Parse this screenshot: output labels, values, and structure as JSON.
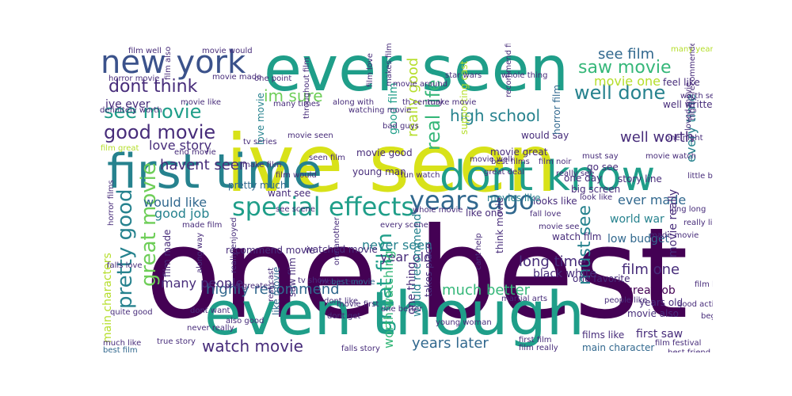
{
  "palette": {
    "dark_purple": "#440154",
    "purple": "#472c7a",
    "blue": "#3b528b",
    "steel": "#31688e",
    "teal_blue": "#26828e",
    "teal": "#1f9e89",
    "green": "#35b779",
    "light_green": "#6ece58",
    "lime": "#b5de2b",
    "yellow": "#d8e219"
  },
  "words": {
    "one_best": "one best",
    "ive_seen": "ive seen",
    "ever_seen": "ever seen",
    "even_though": "even though",
    "first_time": "first time",
    "dont_know": "dont know",
    "new_york": "new york",
    "special_effects": "special effects",
    "years_ago": "years ago",
    "see_movie": "see movie",
    "good_movie": "good movie",
    "watch_movie": "watch movie",
    "great_film": "great film",
    "great_movie": "great movie",
    "pretty_good": "pretty good",
    "real_life": "real life",
    "really_good": "really good",
    "well_done": "well done",
    "high_school": "high school",
    "saw_movie": "saw movie",
    "see_film": "see film",
    "dont_think": "dont think",
    "im_sure": "im sure",
    "years_later": "years later",
    "highly_recommend": "highly recommend",
    "much_better": "much better",
    "long_time": "long time",
    "must_see": "must see",
    "film_one": "film one",
    "well_worth": "well worth",
    "every_time": "every time",
    "ever_made": "ever made",
    "movie_one": "movie one",
    "havent_seen": "havent seen",
    "love_story": "love story",
    "would_like": "would like",
    "good_job": "good job",
    "never_seen": "never seen",
    "year_old": "year old",
    "worth_watching": "worth watching",
    "many_people": "many people",
    "main_characters": "main characters",
    "film_made": "film made",
    "ive_ever": "ive ever",
    "good_film": "good film",
    "one_thing": "one thing",
    "black_white": "black white",
    "world_war": "world war",
    "low_budget": "low budget",
    "great_job": "great job",
    "movie_really": "movie really",
    "first_saw": "first saw",
    "main_character": "main character",
    "films_like": "films like",
    "movie_also": "movie also",
    "years_old": "years old",
    "one_favorite": "one favorite",
    "feel_like": "feel like",
    "well_written": "well written",
    "big_screen": "big screen",
    "look_like": "look like",
    "looks_like": "looks like",
    "movies_like": "movies like",
    "one_day": "one day",
    "go_see": "go see",
    "story_line": "story line",
    "must_say": "must say",
    "would_say": "would say",
    "pretty_much": "pretty much",
    "want_see": "want see",
    "young_man": "young man",
    "movie_good": "movie good",
    "movie_great": "movie great",
    "fun_watch": "fun watch",
    "seen_film": "seen film",
    "film_would": "film would",
    "make_film": "make film",
    "end_movie": "end movie",
    "film_great": "film great",
    "tv_series": "tv series",
    "many_times": "many times",
    "love_movie": "love movie",
    "movie_made": "movie made",
    "horror_movie": "horror movie",
    "movie_would": "movie would",
    "film_well": "film well",
    "film_also": "film also",
    "movie_like": "movie like",
    "watching_movie": "watching movie",
    "supporting_cast": "supporting cast",
    "th_century": "th century",
    "recommend_film": "recommend film",
    "movie_well": "movie well",
    "horror_film": "horror film",
    "one_night": "one night",
    "loved_movie": "loved movie",
    "highly_recommended": "highly recommended",
    "movie_ever": "movie ever",
    "dont_like": "dont like",
    "best_movie": "best movie",
    "like_movie": "like movie",
    "saw_film": "saw film",
    "recommend_movie": "recommend movie",
    "watched_movie": "watched movie",
    "really_enjoyed": "really enjoyed",
    "along_way": "along way",
    "horror_films": "horror films",
    "quite_good": "quite good",
    "also_good": "also good",
    "never_really": "never really",
    "dont_want": "dont want",
    "true_story": "true story",
    "much_like": "much like",
    "best_film": "best film",
    "one_greatest": "one greatest",
    "rest_cast": "rest cast",
    "dont_get": "dont get",
    "would_recommend": "would recommend",
    "takes_place": "takes place",
    "young_woman": "young woman",
    "cant_help": "cant help",
    "think_movie": "think movie",
    "like_one": "like one",
    "watch_film": "watch film",
    "first_film": "first film",
    "film_really": "film really",
    "film_festival": "film festival",
    "best_friend": "best friend",
    "film_good": "film good",
    "film_like": "film like",
    "many_years": "many years",
    "little_bit": "little bit",
    "one_another": "one another",
    "bad_guys": "bad guys",
    "throughout_film": "throughout film",
    "makes_film": "makes film",
    "film_noir": "film noir",
    "best_films": "best films",
    "film_love": "film love",
    "along_with": "along with",
    "good_acting": "good acting",
    "one_point": "one point",
    "definitely_worth": "definitely worth",
    "star_wars": "star wars",
    "whole_thing": "whole thing",
    "made_film": "made film",
    "tv_show": "tv show",
    "falls_love": "falls love",
    "fall_love": "fall love",
    "people_like": "people like",
    "beginning_end": "beginning end",
    "martial_arts": "martial arts",
    "science_fiction": "science fiction",
    "falls_story": "falls story",
    "subject_matter": "subject matter",
    "movie_first": "movie first",
    "one_better": "one better",
    "make_movie": "make movie",
    "see_scene": "see scene",
    "really_liked": "really liked",
    "movie_watch": "movie watch",
    "worth_seeing": "worth seeing",
    "long_long": "long long",
    "great_deal": "great deal",
    "really_see": "really see",
    "whole_movie": "whole movie",
    "good_film_2": "good film",
    "made_movie": "made movie",
    "movie_see": "movie see",
    "every_scene": "every scene",
    "movie_seen": "movie seen",
    "movie_around": "movie around"
  }
}
